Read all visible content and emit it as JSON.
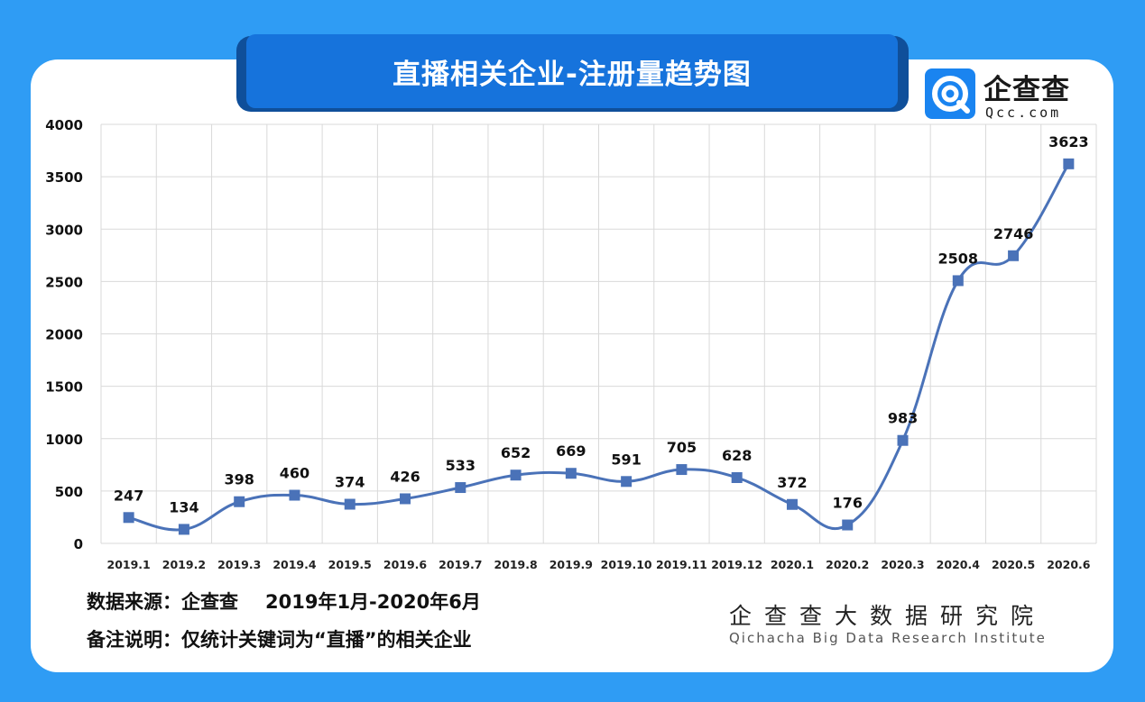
{
  "title": "直播相关企业-注册量趋势图",
  "logo": {
    "icon": "qcc-logo-icon",
    "name": "企查查",
    "domain": "Qcc.com"
  },
  "chart_data": {
    "type": "line",
    "categories": [
      "2019.1",
      "2019.2",
      "2019.3",
      "2019.4",
      "2019.5",
      "2019.6",
      "2019.7",
      "2019.8",
      "2019.9",
      "2019.10",
      "2019.11",
      "2019.12",
      "2020.1",
      "2020.2",
      "2020.3",
      "2020.4",
      "2020.5",
      "2020.6"
    ],
    "series": [
      {
        "values": [
          247,
          134,
          398,
          460,
          374,
          426,
          533,
          652,
          669,
          591,
          705,
          628,
          372,
          176,
          983,
          2508,
          2746,
          3623
        ]
      }
    ],
    "ylim": [
      0,
      4000
    ],
    "yticks": [
      "0",
      "500",
      "1000",
      "1500",
      "2000",
      "2500",
      "3000",
      "3500",
      "4000"
    ],
    "grid": true,
    "line_color": "#4a72b8",
    "marker": "square"
  },
  "footer": {
    "source_label": "数据来源：企查查",
    "period": "2019年1月-2020年6月",
    "note": "备注说明：仅统计关键词为“直播”的相关企业"
  },
  "institute": {
    "cn": "企查查大数据研究院",
    "en": "Qichacha Big Data Research Institute"
  }
}
